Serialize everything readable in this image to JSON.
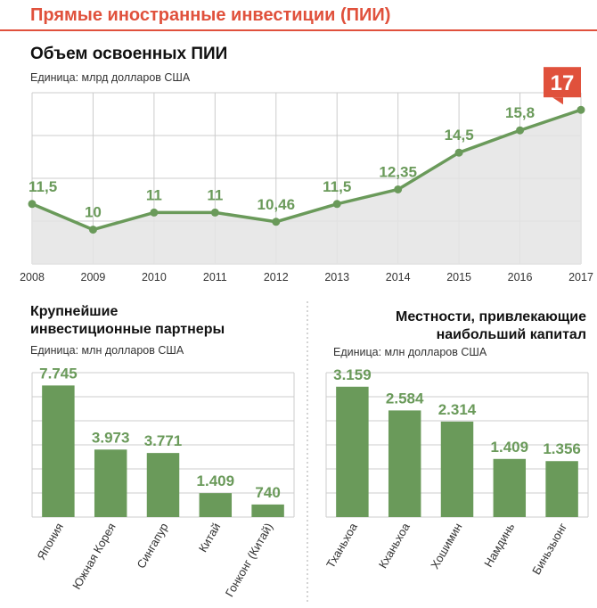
{
  "header": {
    "title": "Прямые иностранные инвестиции (ПИИ)",
    "accent_color": "#e0513c"
  },
  "chart_data": [
    {
      "type": "area",
      "title": "Объем освоенных ПИИ",
      "subtitle": "Единица: млрд долларов США",
      "x": [
        "2008",
        "2009",
        "2010",
        "2011",
        "2012",
        "2013",
        "2014",
        "2015",
        "2016",
        "2017"
      ],
      "values": [
        11.5,
        10,
        11,
        11,
        10.46,
        11.5,
        12.35,
        14.5,
        15.8,
        17
      ],
      "labels": [
        "11,5",
        "10",
        "11",
        "11",
        "10,46",
        "11,5",
        "12,35",
        "14,5",
        "15,8",
        "17"
      ],
      "ylim": [
        8,
        18
      ],
      "grid": true,
      "line_color": "#6a9a5a",
      "fill_color": "#e4e4e4",
      "highlight_color": "#e0513c"
    },
    {
      "type": "bar",
      "title": "Крупнейшие инвестиционные партнеры",
      "subtitle": "Единица: млн долларов США",
      "categories": [
        "Япония",
        "Южная Корея",
        "Сингапур",
        "Китай",
        "Гонконг (Китай)"
      ],
      "values": [
        7745,
        3973,
        3771,
        1409,
        740
      ],
      "labels": [
        "7.745",
        "3.973",
        "3.771",
        "1.409",
        "740"
      ],
      "ylim": [
        0,
        8500
      ],
      "grid": true,
      "bar_color": "#6a9a5a"
    },
    {
      "type": "bar",
      "title": "Местности, привлекающие наибольший капитал",
      "subtitle": "Единица: млн долларов США",
      "categories": [
        "Тханьхоа",
        "Кханьхоа",
        "Хошимин",
        "Намдинь",
        "Биньзыонг"
      ],
      "values": [
        3159,
        2584,
        2314,
        1409,
        1356
      ],
      "labels": [
        "3.159",
        "2.584",
        "2.314",
        "1.409",
        "1.356"
      ],
      "ylim": [
        0,
        3500
      ],
      "grid": true,
      "bar_color": "#6a9a5a"
    }
  ],
  "titles": {
    "line": "Объем освоенных ПИИ",
    "left_l1": "Крупнейшие",
    "left_l2": "инвестиционные партнеры",
    "right_l1": "Местности, привлекающие",
    "right_l2": "наибольший капитал",
    "unit_bn": "Единица: млрд долларов США",
    "unit_mn": "Единица: млн долларов США"
  }
}
